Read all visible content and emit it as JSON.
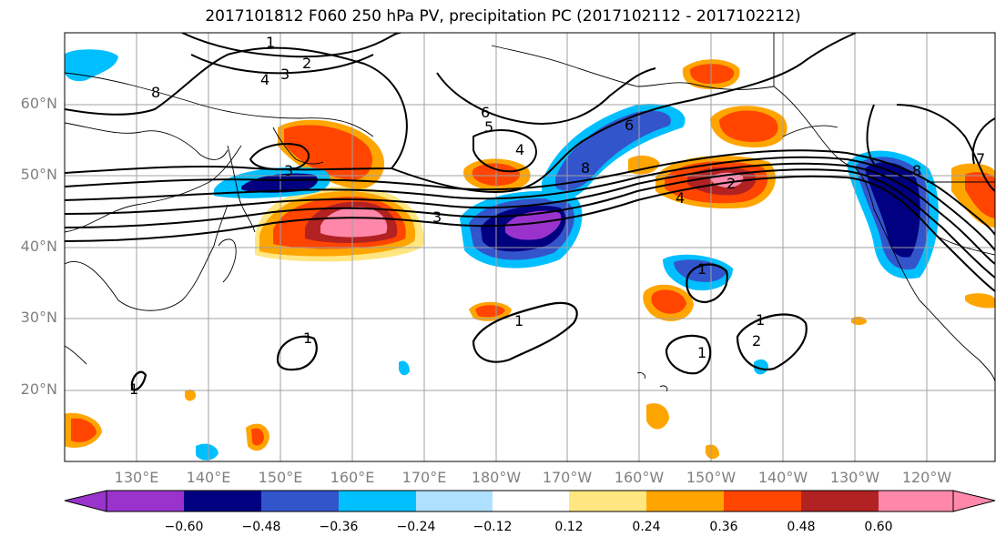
{
  "title": "2017101812 F060 250 hPa PV, precipitation PC (2017102112 - 2017102212)",
  "lat_labels": [
    "60°N",
    "50°N",
    "40°N",
    "30°N",
    "20°N"
  ],
  "lon_labels": [
    "130°E",
    "140°E",
    "150°E",
    "160°E",
    "170°E",
    "180°W",
    "170°W",
    "160°W",
    "150°W",
    "140°W",
    "130°W",
    "120°W"
  ],
  "colorbar": {
    "tick_labels": [
      "-0.60",
      "-0.48",
      "-0.36",
      "-0.24",
      "-0.12",
      "0.12",
      "0.24",
      "0.36",
      "0.48",
      "0.60"
    ],
    "colors": [
      "#9933cc",
      "#000080",
      "#3355cc",
      "#00bfff",
      "#b0e0ff",
      "#ffffff",
      "#ffe680",
      "#ffa500",
      "#ff4500",
      "#b22222",
      "#ff88aa"
    ]
  },
  "contour_labels": [
    "1",
    "2",
    "3",
    "4",
    "5",
    "6",
    "7",
    "8"
  ],
  "colors": {
    "grid": "#a0a0a0",
    "contour": "#000000",
    "coast": "#000000"
  }
}
